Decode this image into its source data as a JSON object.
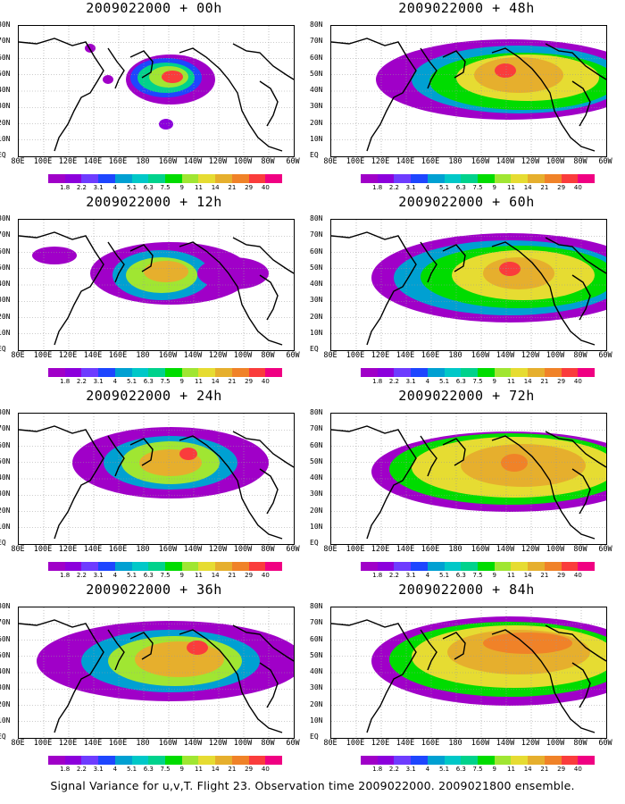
{
  "colors": [
    "#a000c8",
    "#8c00dc",
    "#6e3cff",
    "#1e46ff",
    "#00a0d2",
    "#00c8c8",
    "#00d28c",
    "#00dc00",
    "#a0e632",
    "#e6dc32",
    "#e6af2d",
    "#f08228",
    "#fa3c3c",
    "#f00082"
  ],
  "colorbar_labels": [
    "1.8",
    "2.2",
    "3.1",
    "4",
    "5.1",
    "6.3",
    "7.5",
    "9",
    "11",
    "14",
    "21",
    "29",
    "40"
  ],
  "lat_labels": [
    "80N",
    "70N",
    "60N",
    "50N",
    "40N",
    "30N",
    "20N",
    "10N",
    "EQ"
  ],
  "lon_labels": [
    "80E",
    "100E",
    "120E",
    "140E",
    "160E",
    "180",
    "160W",
    "140W",
    "120W",
    "100W",
    "80W",
    "60W"
  ],
  "panels": [
    {
      "title": "2009022000 + 00h"
    },
    {
      "title": "2009022000 + 48h"
    },
    {
      "title": "2009022000 + 12h"
    },
    {
      "title": "2009022000 + 60h"
    },
    {
      "title": "2009022000 + 24h"
    },
    {
      "title": "2009022000 + 72h"
    },
    {
      "title": "2009022000 + 36h"
    },
    {
      "title": "2009022000 + 84h"
    }
  ],
  "caption": "Signal Variance for u,v,T. Flight 23. Observation time 2009022000. 2009021800 ensemble."
}
